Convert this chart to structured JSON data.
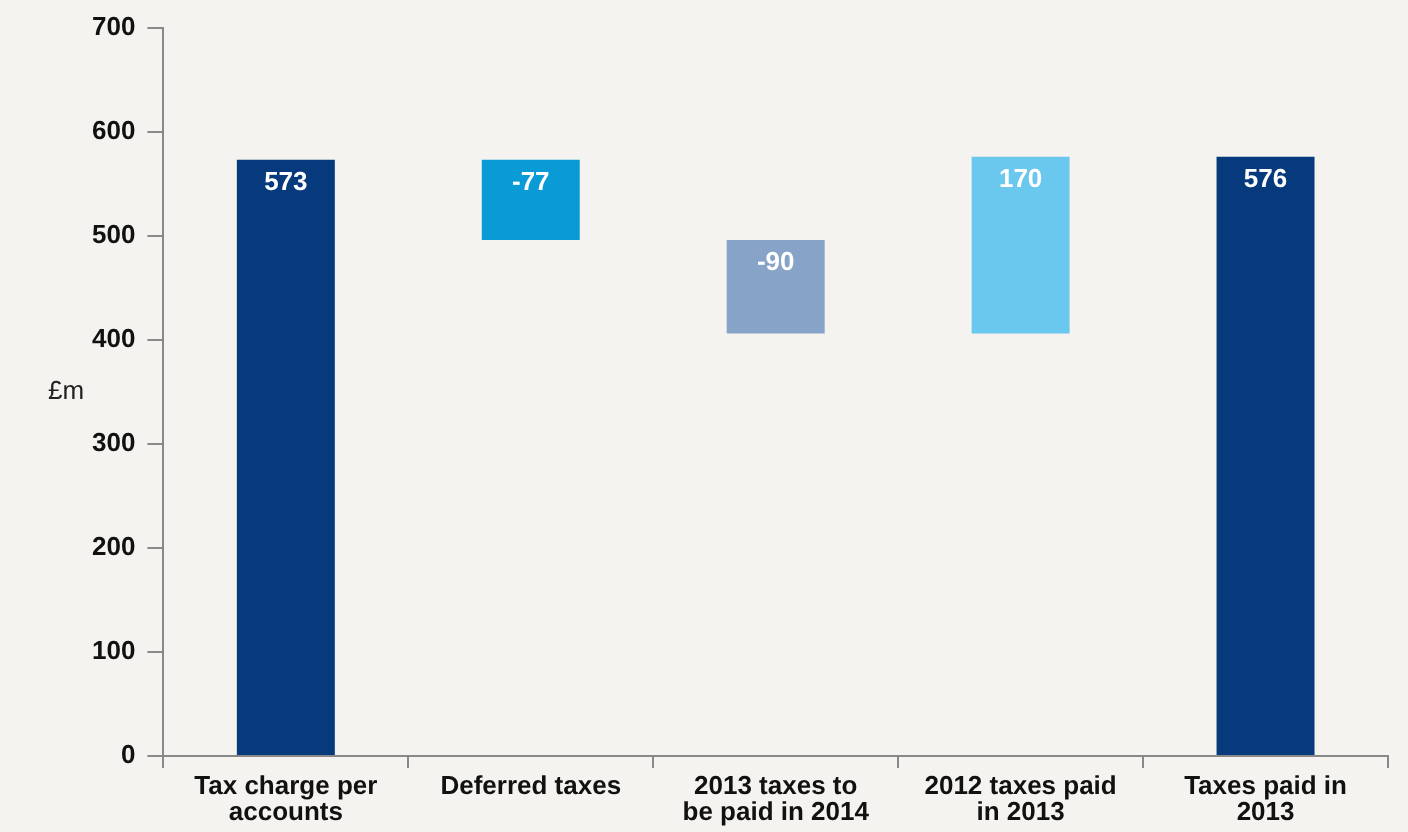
{
  "chart_data": {
    "type": "bar",
    "ylabel": "£m",
    "categories": [
      "Tax charge per accounts",
      "Deferred taxes",
      "2013 taxes to be paid in 2014",
      "2012 taxes paid in 2013",
      "Taxes paid in 2013"
    ],
    "values": [
      573,
      -77,
      -90,
      170,
      576
    ],
    "base": [
      0,
      573,
      496,
      406,
      0
    ],
    "colors": [
      "#063a7c",
      "#0a9ad6",
      "#87a3c7",
      "#6ac8ee",
      "#063a7c"
    ],
    "ylim": [
      0,
      700
    ],
    "yticks": [
      0,
      100,
      200,
      300,
      400,
      500,
      600,
      700
    ],
    "grid": false,
    "data_labels": true,
    "legend": false
  }
}
